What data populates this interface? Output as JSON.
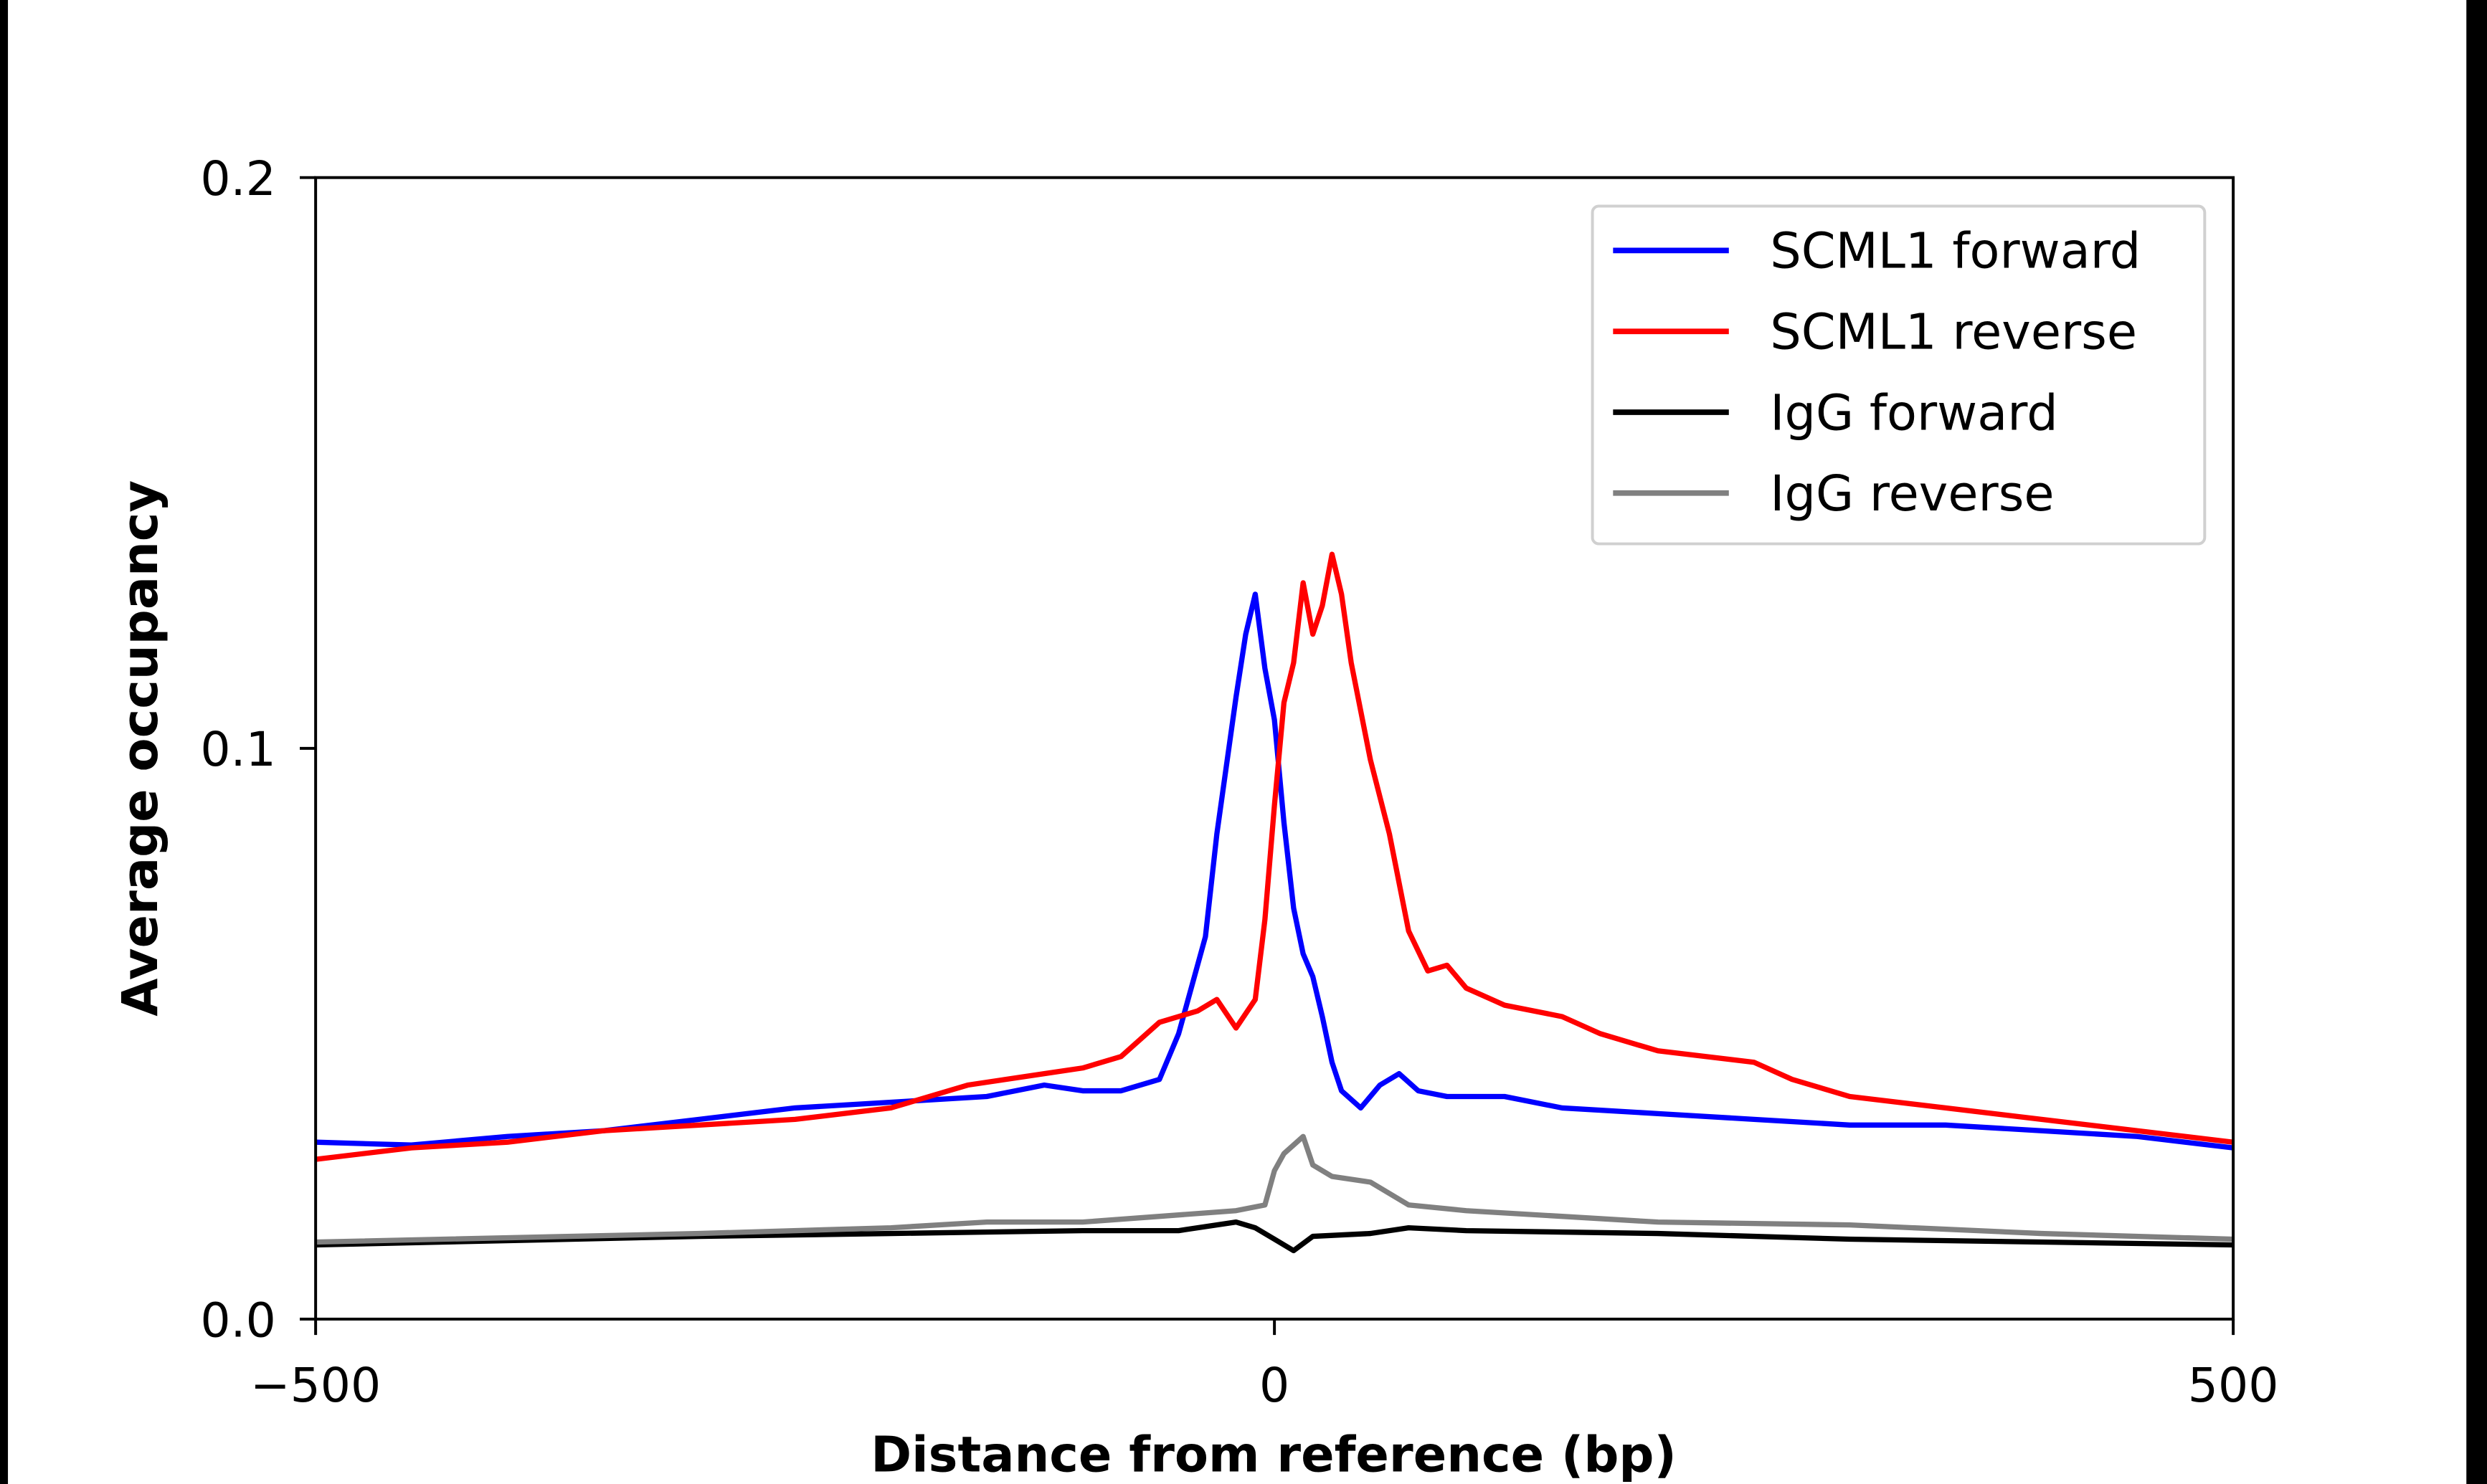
{
  "chart_data": {
    "type": "line",
    "title": "",
    "xlabel": "Distance from reference (bp)",
    "ylabel": "Average occupancy",
    "xlim": [
      -500,
      500
    ],
    "ylim": [
      0.0,
      0.2
    ],
    "xticks": [
      -500,
      0,
      500
    ],
    "xtick_labels": [
      "−500",
      "0",
      "500"
    ],
    "yticks": [
      0.0,
      0.1,
      0.2
    ],
    "ytick_labels": [
      "0.0",
      "0.1",
      "0.2"
    ],
    "grid": false,
    "legend_position": "top-right",
    "series": [
      {
        "name": "SCML1 forward",
        "color": "#0000ff",
        "x": [
          -500,
          -450,
          -400,
          -350,
          -300,
          -250,
          -200,
          -150,
          -120,
          -100,
          -80,
          -60,
          -50,
          -36,
          -30,
          -20,
          -15,
          -10,
          -5,
          0,
          5,
          10,
          15,
          20,
          25,
          30,
          35,
          45,
          55,
          65,
          75,
          90,
          120,
          150,
          200,
          250,
          300,
          350,
          400,
          450,
          500
        ],
        "y": [
          0.031,
          0.0305,
          0.032,
          0.033,
          0.035,
          0.037,
          0.038,
          0.039,
          0.041,
          0.04,
          0.04,
          0.042,
          0.05,
          0.067,
          0.085,
          0.109,
          0.12,
          0.127,
          0.114,
          0.105,
          0.087,
          0.072,
          0.064,
          0.06,
          0.053,
          0.045,
          0.04,
          0.037,
          0.041,
          0.043,
          0.04,
          0.039,
          0.039,
          0.037,
          0.036,
          0.035,
          0.034,
          0.034,
          0.033,
          0.032,
          0.03
        ]
      },
      {
        "name": "SCML1 reverse",
        "color": "#ff0000",
        "x": [
          -500,
          -450,
          -400,
          -350,
          -300,
          -250,
          -200,
          -160,
          -120,
          -100,
          -80,
          -60,
          -40,
          -30,
          -20,
          -10,
          -5,
          0,
          5,
          10,
          15,
          20,
          25,
          30,
          35,
          40,
          50,
          60,
          70,
          80,
          90,
          100,
          120,
          150,
          170,
          200,
          250,
          270,
          300,
          350,
          400,
          450,
          500
        ],
        "y": [
          0.028,
          0.03,
          0.031,
          0.033,
          0.034,
          0.035,
          0.037,
          0.041,
          0.043,
          0.044,
          0.046,
          0.052,
          0.054,
          0.056,
          0.051,
          0.056,
          0.07,
          0.09,
          0.108,
          0.115,
          0.129,
          0.12,
          0.125,
          0.134,
          0.127,
          0.115,
          0.098,
          0.085,
          0.068,
          0.061,
          0.062,
          0.058,
          0.055,
          0.053,
          0.05,
          0.047,
          0.045,
          0.042,
          0.039,
          0.037,
          0.035,
          0.033,
          0.031
        ]
      },
      {
        "name": "IgG forward",
        "color": "#000000",
        "x": [
          -500,
          -300,
          -200,
          -100,
          -50,
          -20,
          -10,
          0,
          10,
          20,
          50,
          70,
          100,
          200,
          300,
          400,
          500
        ],
        "y": [
          0.013,
          0.0145,
          0.015,
          0.0155,
          0.0155,
          0.017,
          0.016,
          0.014,
          0.012,
          0.0145,
          0.015,
          0.016,
          0.0155,
          0.015,
          0.014,
          0.0135,
          0.013
        ]
      },
      {
        "name": "IgG reverse",
        "color": "#808080",
        "x": [
          -500,
          -300,
          -200,
          -150,
          -100,
          -60,
          -20,
          -5,
          0,
          5,
          15,
          20,
          30,
          50,
          70,
          100,
          150,
          200,
          300,
          400,
          500
        ],
        "y": [
          0.0135,
          0.015,
          0.016,
          0.017,
          0.017,
          0.018,
          0.019,
          0.02,
          0.026,
          0.029,
          0.032,
          0.027,
          0.025,
          0.024,
          0.02,
          0.019,
          0.018,
          0.017,
          0.0165,
          0.015,
          0.014
        ]
      }
    ]
  }
}
